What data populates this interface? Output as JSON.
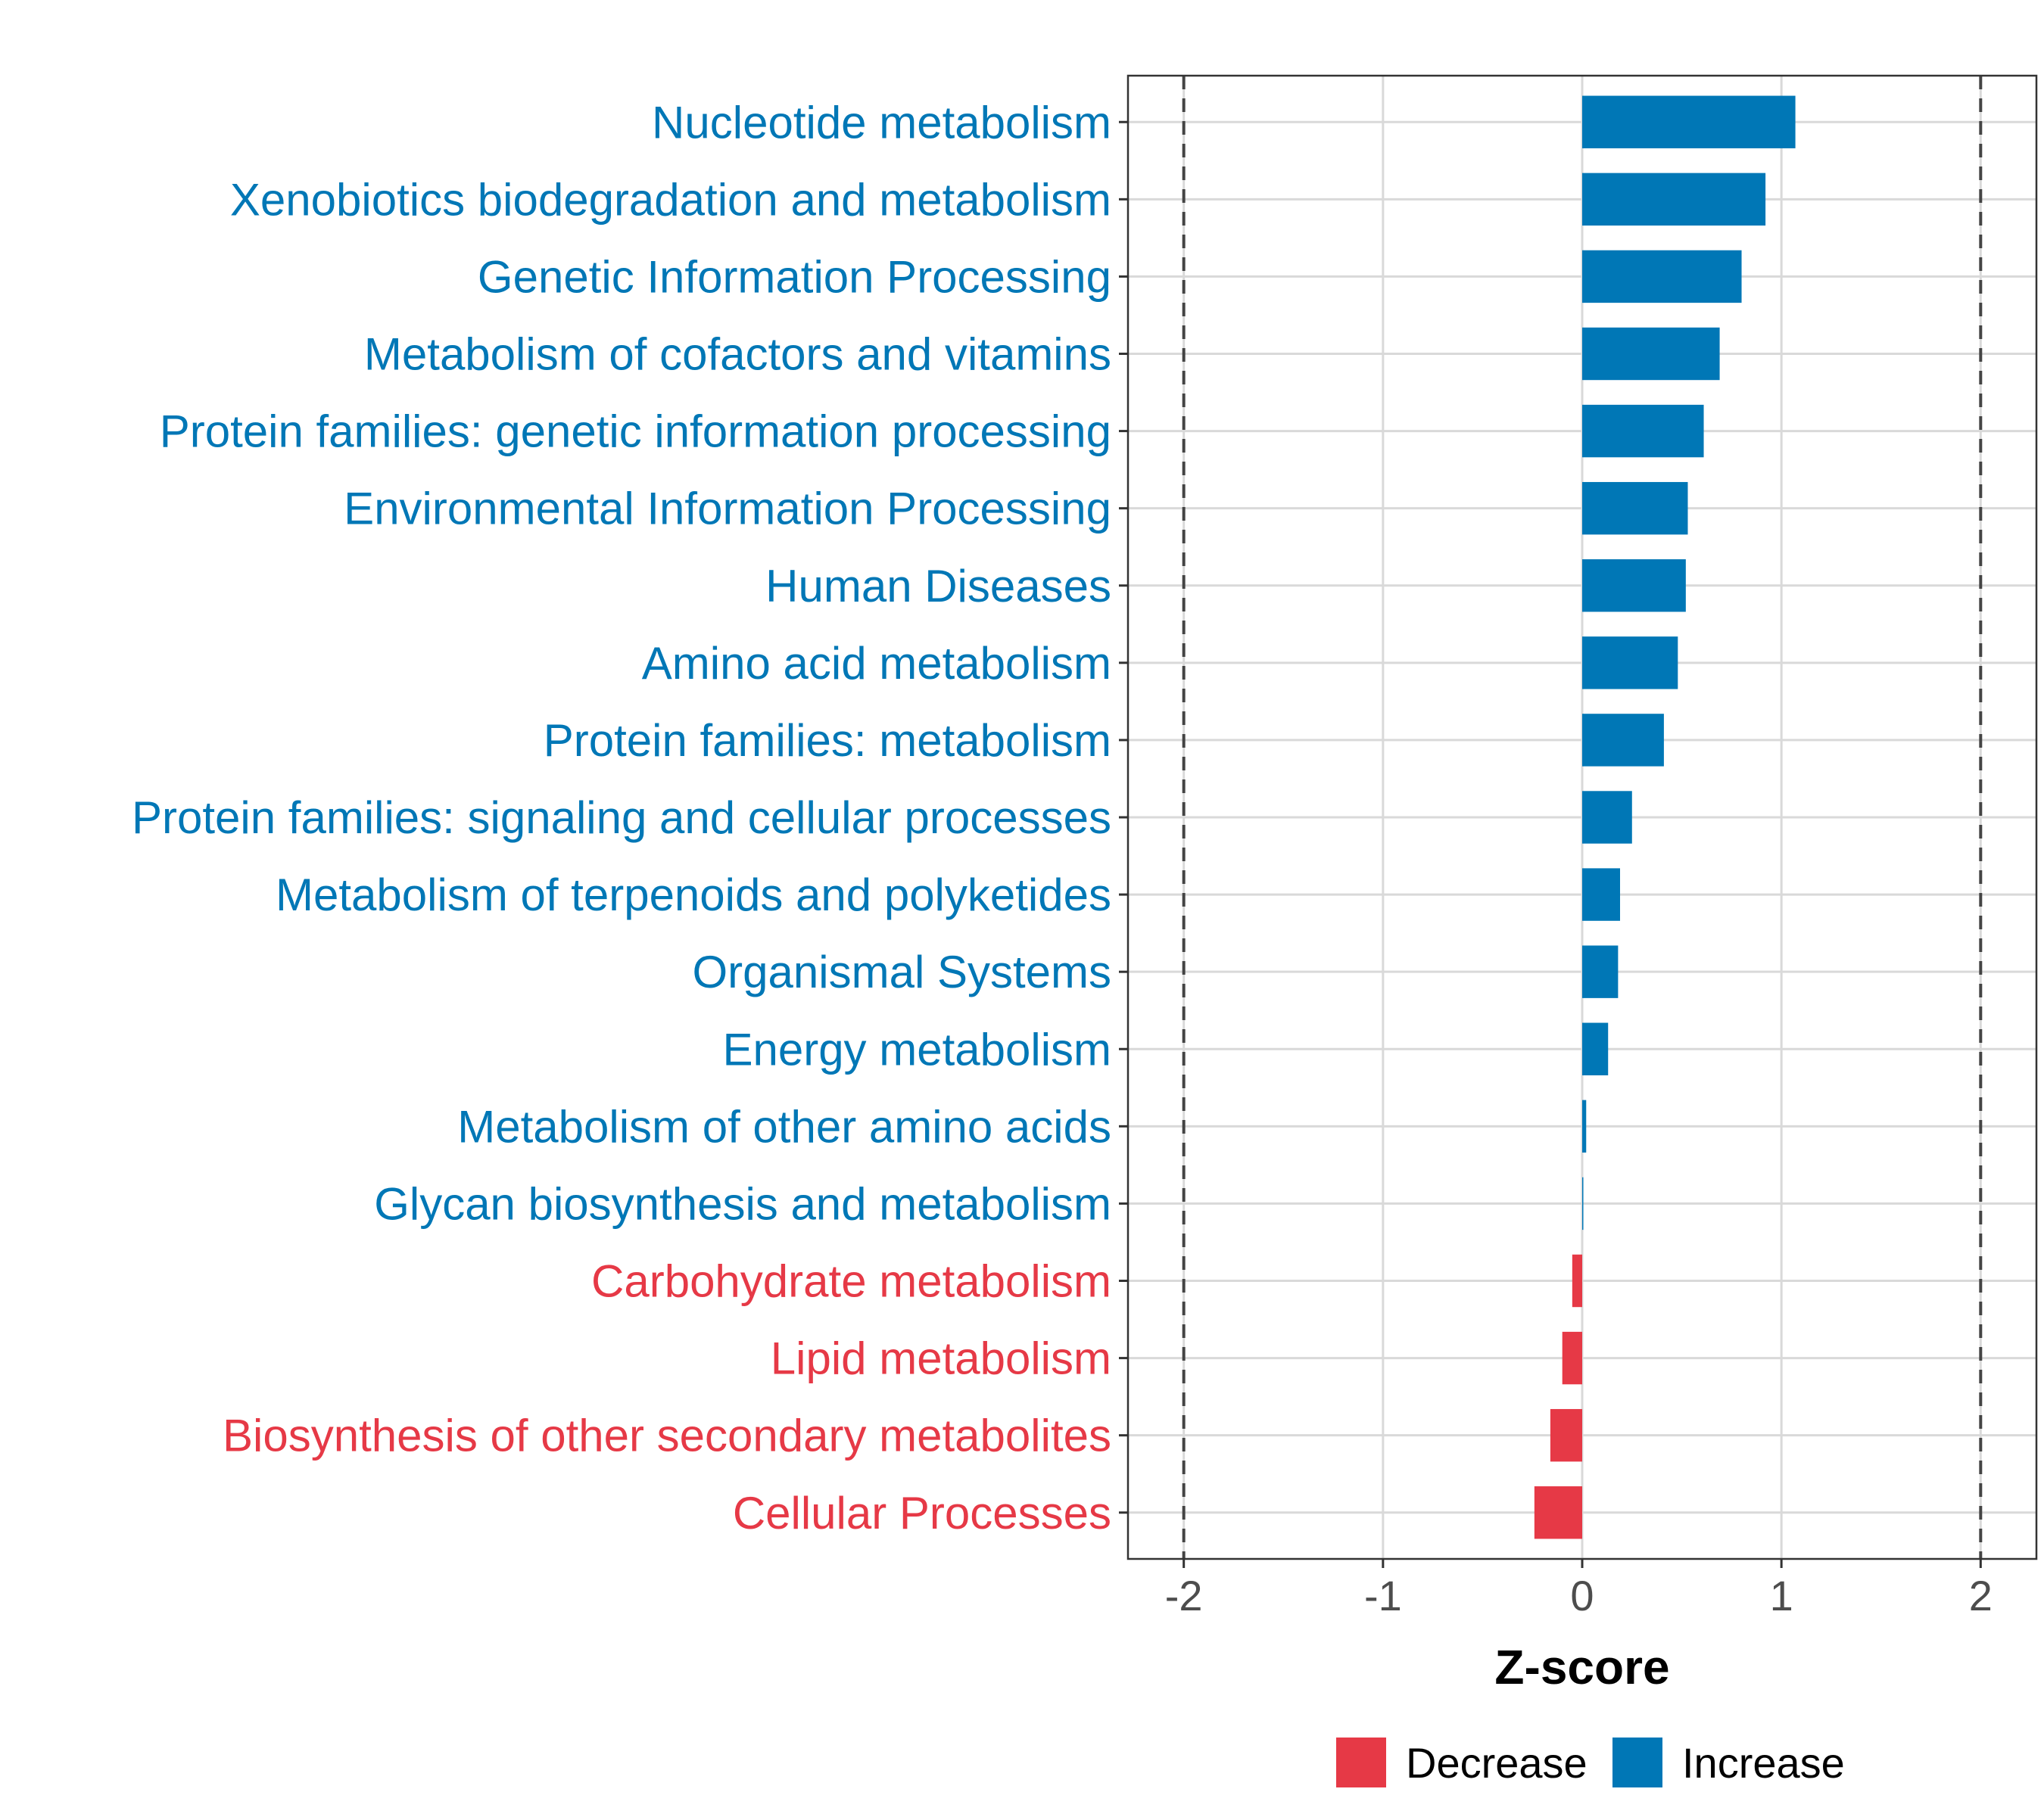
{
  "chart_data": {
    "type": "bar",
    "orientation": "horizontal",
    "xlabel": "Z-score",
    "xlim": [
      -2.28,
      2.28
    ],
    "xticks": [
      -2,
      -1,
      0,
      1,
      2
    ],
    "xtick_labels": [
      "-2",
      "-1",
      "0",
      "1",
      "2"
    ],
    "reference_lines": [
      -2,
      2
    ],
    "grid": true,
    "legend_position": "bottom",
    "categories": [
      "Nucleotide metabolism",
      "Xenobiotics biodegradation and metabolism",
      "Genetic Information Processing",
      "Metabolism of cofactors and vitamins",
      "Protein families: genetic information processing",
      "Environmental Information Processing",
      "Human Diseases",
      "Amino acid metabolism",
      "Protein families: metabolism",
      "Protein families: signaling and cellular processes",
      "Metabolism of terpenoids and polyketides",
      "Organismal Systems",
      "Energy metabolism",
      "Metabolism of other amino acids",
      "Glycan biosynthesis and metabolism",
      "Carbohydrate metabolism",
      "Lipid metabolism",
      "Biosynthesis of other secondary metabolites",
      "Cellular Processes"
    ],
    "values": [
      1.07,
      0.92,
      0.8,
      0.69,
      0.61,
      0.53,
      0.52,
      0.48,
      0.41,
      0.25,
      0.19,
      0.18,
      0.13,
      0.02,
      0.005,
      -0.05,
      -0.1,
      -0.16,
      -0.24
    ],
    "groups": [
      "Increase",
      "Increase",
      "Increase",
      "Increase",
      "Increase",
      "Increase",
      "Increase",
      "Increase",
      "Increase",
      "Increase",
      "Increase",
      "Increase",
      "Increase",
      "Increase",
      "Increase",
      "Decrease",
      "Decrease",
      "Decrease",
      "Decrease"
    ],
    "legend": [
      {
        "name": "Decrease",
        "color": "#e63946"
      },
      {
        "name": "Increase",
        "color": "#0077b6"
      }
    ]
  }
}
